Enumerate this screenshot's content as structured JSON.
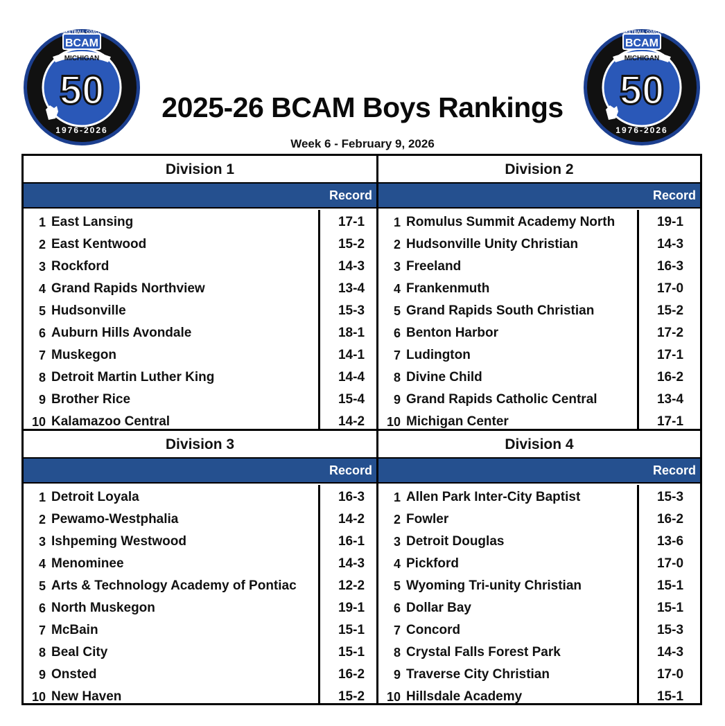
{
  "header": {
    "title": "2025-26 BCAM Boys Rankings",
    "subtitle": "Week 6 - February 9, 2026"
  },
  "logo": {
    "top_text": "BASKETBALL COACHES",
    "acronym": "BCAM",
    "state": "MICHIGAN",
    "number": "50",
    "years": "1976-2026",
    "colors": {
      "ring": "#111111",
      "blue": "#2a58b8",
      "outline": "#1c3f8f"
    }
  },
  "colors": {
    "header_bar": "#25508f",
    "border": "#000000"
  },
  "record_label": "Record",
  "divisions": [
    {
      "name": "Division 1",
      "teams": [
        {
          "rank": "1",
          "name": "East Lansing",
          "record": "17-1"
        },
        {
          "rank": "2",
          "name": "East Kentwood",
          "record": "15-2"
        },
        {
          "rank": "3",
          "name": "Rockford",
          "record": "14-3"
        },
        {
          "rank": "4",
          "name": "Grand Rapids Northview",
          "record": "13-4"
        },
        {
          "rank": "5",
          "name": "Hudsonville",
          "record": "15-3"
        },
        {
          "rank": "6",
          "name": "Auburn Hills Avondale",
          "record": "18-1"
        },
        {
          "rank": "7",
          "name": "Muskegon",
          "record": "14-1"
        },
        {
          "rank": "8",
          "name": "Detroit Martin Luther King",
          "record": "14-4"
        },
        {
          "rank": "9",
          "name": "Brother Rice",
          "record": "15-4"
        },
        {
          "rank": "10",
          "name": "Kalamazoo Central",
          "record": "14-2"
        }
      ]
    },
    {
      "name": "Division 2",
      "teams": [
        {
          "rank": "1",
          "name": "Romulus Summit Academy North",
          "record": "19-1"
        },
        {
          "rank": "2",
          "name": "Hudsonville Unity Christian",
          "record": "14-3"
        },
        {
          "rank": "3",
          "name": "Freeland",
          "record": "16-3"
        },
        {
          "rank": "4",
          "name": "Frankenmuth",
          "record": "17-0"
        },
        {
          "rank": "5",
          "name": "Grand Rapids South Christian",
          "record": "15-2"
        },
        {
          "rank": "6",
          "name": "Benton Harbor",
          "record": "17-2"
        },
        {
          "rank": "7",
          "name": "Ludington",
          "record": "17-1"
        },
        {
          "rank": "8",
          "name": "Divine Child",
          "record": "16-2"
        },
        {
          "rank": "9",
          "name": "Grand Rapids Catholic Central",
          "record": "13-4"
        },
        {
          "rank": "10",
          "name": "Michigan Center",
          "record": "17-1"
        }
      ]
    },
    {
      "name": "Division 3",
      "teams": [
        {
          "rank": "1",
          "name": "Detroit Loyala",
          "record": "16-3"
        },
        {
          "rank": "2",
          "name": "Pewamo-Westphalia",
          "record": "14-2"
        },
        {
          "rank": "3",
          "name": "Ishpeming Westwood",
          "record": "16-1"
        },
        {
          "rank": "4",
          "name": "Menominee",
          "record": "14-3"
        },
        {
          "rank": "5",
          "name": "Arts & Technology Academy of Pontiac",
          "record": "12-2"
        },
        {
          "rank": "6",
          "name": "North Muskegon",
          "record": "19-1"
        },
        {
          "rank": "7",
          "name": "McBain",
          "record": "15-1"
        },
        {
          "rank": "8",
          "name": "Beal City",
          "record": "15-1"
        },
        {
          "rank": "9",
          "name": "Onsted",
          "record": "16-2"
        },
        {
          "rank": "10",
          "name": "New Haven",
          "record": "15-2"
        }
      ]
    },
    {
      "name": "Division 4",
      "teams": [
        {
          "rank": "1",
          "name": "Allen Park Inter-City Baptist",
          "record": "15-3"
        },
        {
          "rank": "2",
          "name": "Fowler",
          "record": "16-2"
        },
        {
          "rank": "3",
          "name": "Detroit Douglas",
          "record": "13-6"
        },
        {
          "rank": "4",
          "name": "Pickford",
          "record": "17-0"
        },
        {
          "rank": "5",
          "name": "Wyoming Tri-unity Christian",
          "record": "15-1"
        },
        {
          "rank": "6",
          "name": "Dollar Bay",
          "record": "15-1"
        },
        {
          "rank": "7",
          "name": "Concord",
          "record": "15-3"
        },
        {
          "rank": "8",
          "name": "Crystal Falls Forest Park",
          "record": "14-3"
        },
        {
          "rank": "9",
          "name": "Traverse City Christian",
          "record": "17-0"
        },
        {
          "rank": "10",
          "name": "Hillsdale Academy",
          "record": "15-1"
        }
      ]
    }
  ]
}
